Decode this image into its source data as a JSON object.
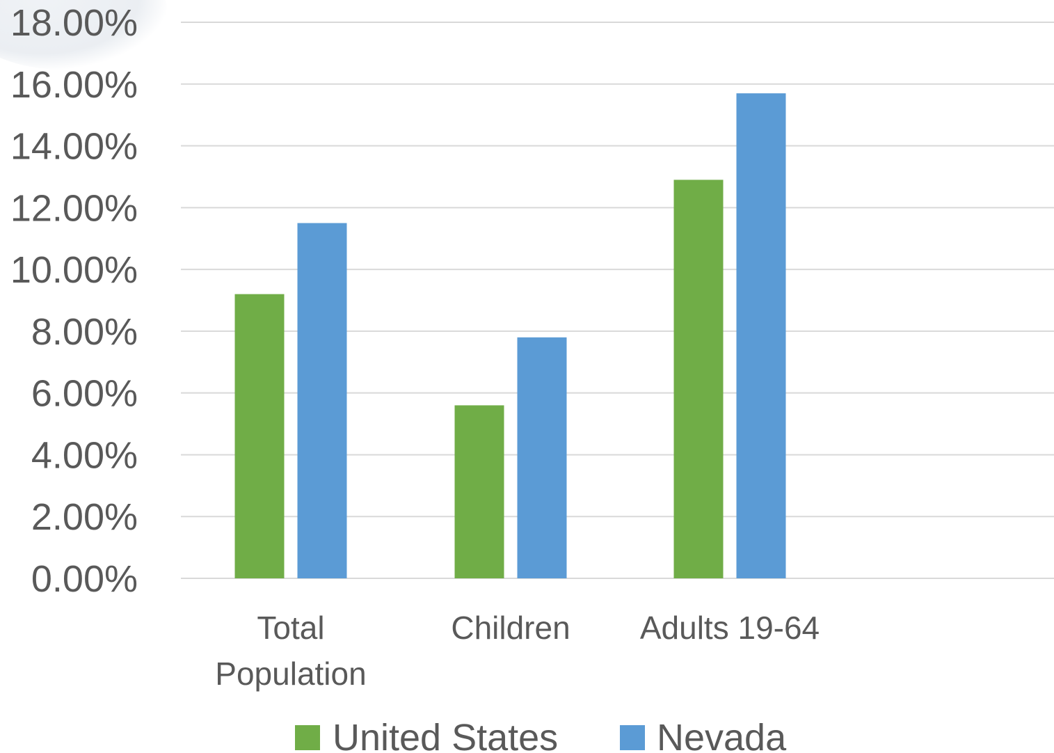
{
  "chart_data": {
    "type": "bar",
    "categories": [
      [
        "Total",
        "Population"
      ],
      [
        "Children"
      ],
      [
        "Adults 19-64"
      ]
    ],
    "series": [
      {
        "name": "United States",
        "color": "#70ad47",
        "values": [
          9.2,
          5.6,
          12.9
        ]
      },
      {
        "name": "Nevada",
        "color": "#5b9bd5",
        "values": [
          11.5,
          7.8,
          15.7
        ]
      }
    ],
    "ylim": [
      0,
      18
    ],
    "yticks": [
      "0.00%",
      "2.00%",
      "4.00%",
      "6.00%",
      "8.00%",
      "10.00%",
      "12.00%",
      "14.00%",
      "16.00%",
      "18.00%"
    ],
    "ytick_step": 2,
    "grid": true,
    "legend_position": "bottom",
    "title": "",
    "xlabel": "",
    "ylabel": ""
  }
}
